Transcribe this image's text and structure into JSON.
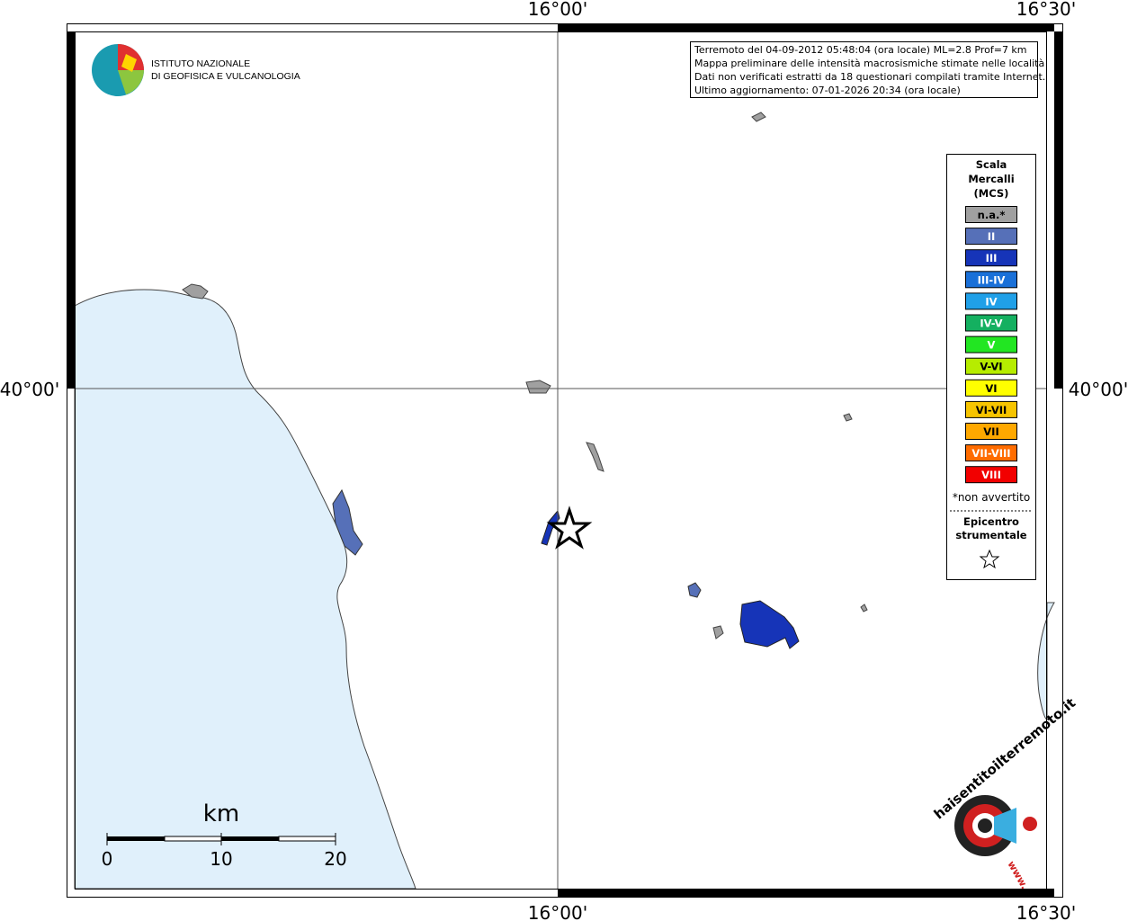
{
  "axes": {
    "top": [
      "16°00'",
      "16°30'"
    ],
    "bottom": [
      "16°00'",
      "16°30'"
    ],
    "left": "40°00'",
    "right": "40°00'"
  },
  "logo": {
    "lines": [
      "ISTITUTO NAZIONALE",
      "DI GEOFISICA E VULCANOLOGIA"
    ]
  },
  "info": {
    "lines": [
      "Terremoto del 04-09-2012 05:48:04 (ora locale) ML=2.8 Prof=7 km",
      "Mappa preliminare delle intensità macrosismiche stimate nelle località",
      "Dati non verificati estratti da 18 questionari compilati tramite Internet.",
      "Ultimo aggiornamento: 07-01-2026 20:34 (ora locale)"
    ]
  },
  "legend": {
    "title": [
      "Scala",
      "Mercalli",
      "(MCS)"
    ],
    "items": [
      {
        "label": "n.a.*",
        "color": "#a0a0a0"
      },
      {
        "label": "II",
        "color": "#5670b8"
      },
      {
        "label": "III",
        "color": "#1634b8"
      },
      {
        "label": "III-IV",
        "color": "#1a70d8"
      },
      {
        "label": "IV",
        "color": "#20a0e8"
      },
      {
        "label": "IV-V",
        "color": "#14b060"
      },
      {
        "label": "V",
        "color": "#22e622"
      },
      {
        "label": "V-VI",
        "color": "#b6ec00"
      },
      {
        "label": "VI",
        "color": "#ffff00"
      },
      {
        "label": "VI-VII",
        "color": "#f6c400"
      },
      {
        "label": "VII",
        "color": "#ffa800"
      },
      {
        "label": "VII-VIII",
        "color": "#ff6c00"
      },
      {
        "label": "VIII",
        "color": "#f20000"
      }
    ],
    "note": "*non avvertito",
    "epicenter": [
      "Epicentro",
      "strumentale"
    ]
  },
  "scale": {
    "unit": "km",
    "labels": [
      "0",
      "10",
      "20"
    ]
  },
  "badge": {
    "text": "haisentitoilterremoto.it",
    "prefix": "www."
  }
}
